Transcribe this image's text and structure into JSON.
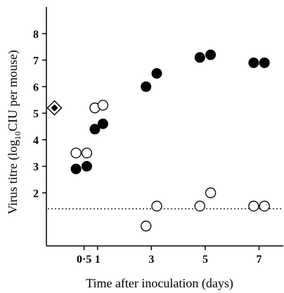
{
  "chart_data": {
    "type": "scatter",
    "xlabel": "Time after inoculation (days)",
    "ylabel_main": "Virus titre (log",
    "ylabel_sub": "10",
    "ylabel_end": "CIU per mouse)",
    "xlim": [
      -0.9,
      7.9
    ],
    "ylim": [
      0,
      9
    ],
    "x_ticks": [
      {
        "value": 0.5,
        "label": "0·5"
      },
      {
        "value": 1,
        "label": "1"
      },
      {
        "value": 3,
        "label": "3"
      },
      {
        "value": 5,
        "label": "5"
      },
      {
        "value": 7,
        "label": "7"
      }
    ],
    "y_ticks": [
      {
        "value": 2,
        "label": "2"
      },
      {
        "value": 3,
        "label": "3"
      },
      {
        "value": 4,
        "label": "4"
      },
      {
        "value": 5,
        "label": "5"
      },
      {
        "value": 6,
        "label": "6"
      },
      {
        "value": 7,
        "label": "7"
      },
      {
        "value": 8,
        "label": "8"
      }
    ],
    "detection_limit": 1.4,
    "series": [
      {
        "marker": "filled-circle",
        "points": [
          {
            "x": 0.2,
            "y": 2.9
          },
          {
            "x": 0.6,
            "y": 3.0
          },
          {
            "x": 0.9,
            "y": 4.4
          },
          {
            "x": 1.2,
            "y": 4.6
          },
          {
            "x": 2.8,
            "y": 6.0
          },
          {
            "x": 3.2,
            "y": 6.5
          },
          {
            "x": 4.8,
            "y": 7.1
          },
          {
            "x": 5.2,
            "y": 7.2
          },
          {
            "x": 6.8,
            "y": 6.9
          },
          {
            "x": 7.2,
            "y": 6.9
          }
        ]
      },
      {
        "marker": "open-circle",
        "points": [
          {
            "x": 0.2,
            "y": 3.5
          },
          {
            "x": 0.6,
            "y": 3.5
          },
          {
            "x": 0.9,
            "y": 5.2
          },
          {
            "x": 1.2,
            "y": 5.3
          },
          {
            "x": 2.8,
            "y": 0.75
          },
          {
            "x": 3.2,
            "y": 1.5
          },
          {
            "x": 4.8,
            "y": 1.5
          },
          {
            "x": 5.2,
            "y": 2.0
          },
          {
            "x": 6.8,
            "y": 1.5
          },
          {
            "x": 7.2,
            "y": 1.5
          }
        ]
      },
      {
        "marker": "diamond",
        "points": [
          {
            "x": -0.6,
            "y": 5.2
          }
        ]
      }
    ]
  }
}
